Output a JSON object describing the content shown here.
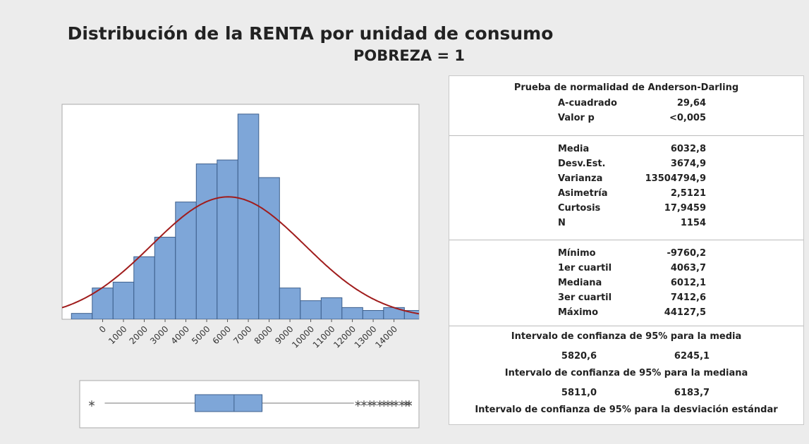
{
  "title": "Distribución de la RENTA por unidad de consumo",
  "subtitle": "POBREZA = 1",
  "chart_data": [
    {
      "type": "histogram",
      "bins": [
        -1500,
        -500,
        500,
        1500,
        2500,
        3500,
        4500,
        5500,
        6500,
        7500,
        8500,
        9500,
        10500,
        11500,
        12500,
        13500,
        14500,
        15500
      ],
      "values": [
        6,
        32,
        38,
        64,
        84,
        120,
        159,
        163,
        210,
        145,
        32,
        19,
        22,
        12,
        9,
        12,
        9
      ],
      "color": "#7ea6d8",
      "edge_color": "#3d5f8c",
      "curve_color": "#a01c1c",
      "xlim": [
        -1950,
        15200
      ],
      "ylim": [
        0,
        220
      ],
      "xticks": [
        0,
        1000,
        2000,
        3000,
        4000,
        5000,
        6000,
        7000,
        8000,
        9000,
        10000,
        11000,
        12000,
        13000,
        14000
      ]
    },
    {
      "type": "boxplot",
      "xlim": [
        -1700,
        15250
      ],
      "whisker_low": -450,
      "whisker_high": 12000,
      "outliers": [
        -9760.2,
        12200,
        12500,
        12800,
        13000,
        13300,
        13500,
        13700,
        13900,
        14100,
        14400,
        14600,
        14800,
        15100
      ],
      "color": "#7ea6d8",
      "edge_color": "#3d5f8c"
    }
  ],
  "table": {
    "normality": {
      "title": "Prueba de normalidad de Anderson-Darling",
      "rows": [
        [
          "A-cuadrado",
          "29,64"
        ],
        [
          "Valor p",
          "<0,005"
        ]
      ]
    },
    "moments": {
      "rows": [
        [
          "Media",
          "6032,8"
        ],
        [
          "Desv.Est.",
          "3674,9"
        ],
        [
          "Varianza",
          "13504794,9"
        ],
        [
          "Asimetría",
          "2,5121"
        ],
        [
          "Curtosis",
          "17,9459"
        ],
        [
          "N",
          "1154"
        ]
      ]
    },
    "quantiles": {
      "rows": [
        [
          "Mínimo",
          "-9760,2"
        ],
        [
          "1er cuartil",
          "4063,7"
        ],
        [
          "Mediana",
          "6012,1"
        ],
        [
          "3er cuartil",
          "7412,6"
        ],
        [
          "Máximo",
          "44127,5"
        ]
      ]
    },
    "intervals": [
      {
        "title": "Intervalo de confianza de 95% para la media",
        "values": [
          "5820,6",
          "6245,1"
        ]
      },
      {
        "title": "Intervalo de confianza de 95% para la mediana",
        "values": [
          "5811,0",
          "6183,7"
        ]
      },
      {
        "title": "Intervalo de confianza de 95% para la desviación estándar"
      }
    ]
  }
}
